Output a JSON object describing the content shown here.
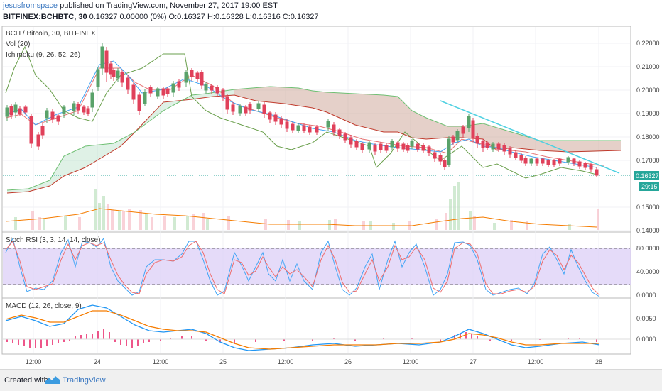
{
  "header": {
    "user": "jesusfromspace",
    "published": "published on TradingView.com, November 27, 2017 19:00 EST",
    "symbol": "BITFINEX:BCHBTC, 30",
    "quote": "0.16327 0.00000 (0%) O:0.16327 H:0.16328 L:0.16316 C:0.16327"
  },
  "price_pane": {
    "title": "BCH / Bitcoin, 30, BITFINEX",
    "indicator_vol": "Vol (20)",
    "indicator_ichimoku": "Ichimoku (9, 26, 52, 26)",
    "last_price_label": "0.16327",
    "countdown_label": "29:15",
    "y_ticks": [
      "0.22000",
      "0.21000",
      "0.20000",
      "0.19000",
      "0.18000",
      "0.17000",
      "0.15000",
      "0.14000"
    ]
  },
  "rsi_pane": {
    "title": "Stoch RSI (3, 3, 14, 14, close)",
    "y_ticks": [
      "80.0000",
      "40.0000",
      "0.0000"
    ]
  },
  "macd_pane": {
    "title": "MACD (12, 26, close, 9)",
    "y_ticks": [
      "0.0050",
      "0.0000"
    ]
  },
  "x_axis": [
    "12:00",
    "24",
    "12:00",
    "25",
    "12:00",
    "26",
    "12:00",
    "27",
    "12:00",
    "28"
  ],
  "footer": {
    "created": "Created with",
    "brand": "TradingView"
  },
  "colors": {
    "up": "#59a26a",
    "down": "#e0405a",
    "rsi_band": "#dccff7",
    "trend": "#4dd0e1",
    "macd": "#2196f3",
    "signal": "#f57c00",
    "last": "#26a69a"
  }
}
